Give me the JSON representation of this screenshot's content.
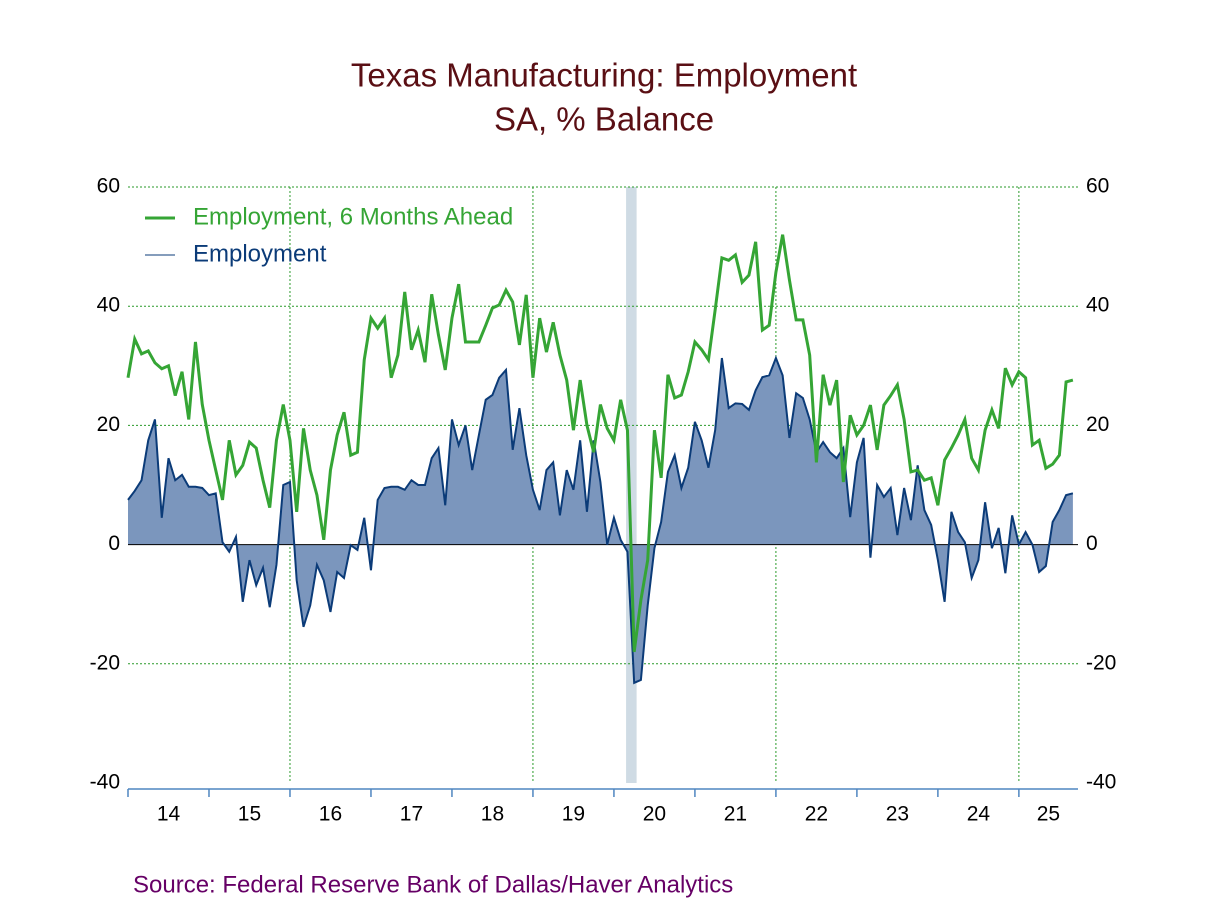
{
  "chart_data": {
    "type": "line-area",
    "title": "Texas Manufacturing: Employment",
    "subtitle": "SA, % Balance",
    "source": "Source:  Federal Reserve Bank of Dallas/Haver Analytics",
    "x": [
      2014,
      2014.083,
      2014.167,
      2014.25,
      2014.333,
      2014.417,
      2014.5,
      2014.583,
      2014.667,
      2014.75,
      2014.833,
      2014.917,
      2015,
      2015.083,
      2015.167,
      2015.25,
      2015.333,
      2015.417,
      2015.5,
      2015.583,
      2015.667,
      2015.75,
      2015.833,
      2015.917,
      2016,
      2016.083,
      2016.167,
      2016.25,
      2016.333,
      2016.417,
      2016.5,
      2016.583,
      2016.667,
      2016.75,
      2016.833,
      2016.917,
      2017,
      2017.083,
      2017.167,
      2017.25,
      2017.333,
      2017.417,
      2017.5,
      2017.583,
      2017.667,
      2017.75,
      2017.833,
      2017.917,
      2018,
      2018.083,
      2018.167,
      2018.25,
      2018.333,
      2018.417,
      2018.5,
      2018.583,
      2018.667,
      2018.75,
      2018.833,
      2018.917,
      2019,
      2019.083,
      2019.167,
      2019.25,
      2019.333,
      2019.417,
      2019.5,
      2019.583,
      2019.667,
      2019.75,
      2019.833,
      2019.917,
      2020,
      2020.083,
      2020.167,
      2020.25,
      2020.333,
      2020.417,
      2020.5,
      2020.583,
      2020.667,
      2020.75,
      2020.833,
      2020.917,
      2021,
      2021.083,
      2021.167,
      2021.25,
      2021.333,
      2021.417,
      2021.5,
      2021.583,
      2021.667,
      2021.75,
      2021.833,
      2021.917,
      2022,
      2022.083,
      2022.167,
      2022.25,
      2022.333,
      2022.417,
      2022.5,
      2022.583,
      2022.667,
      2022.75,
      2022.833,
      2022.917,
      2023,
      2023.083,
      2023.167,
      2023.25,
      2023.333,
      2023.417,
      2023.5,
      2023.583,
      2023.667,
      2023.75,
      2023.833,
      2023.917,
      2024,
      2024.083,
      2024.167,
      2024.25,
      2024.333,
      2024.417,
      2024.5,
      2024.583,
      2024.667,
      2024.75,
      2024.833,
      2024.917,
      2025,
      2025.083,
      2025.167,
      2025.25,
      2025.333,
      2025.417,
      2025.5,
      2025.583,
      2025.667
    ],
    "series": [
      {
        "name": "Employment, 6 Months Ahead",
        "color": "#35a535",
        "values": [
          28,
          34.5,
          32,
          32.5,
          30.5,
          29.5,
          30,
          25,
          29,
          21,
          34,
          23.5,
          17.5,
          12.5,
          7.5,
          17.5,
          11.7,
          13.3,
          17.2,
          16.2,
          10.8,
          6.2,
          17.5,
          23.5,
          17.5,
          5.5,
          19.5,
          12.5,
          8.3,
          0.8,
          12.5,
          18.4,
          22.2,
          15,
          15.5,
          31,
          38,
          36.3,
          38,
          28,
          31.8,
          42.4,
          32.7,
          36,
          30.6,
          42,
          35.2,
          29.3,
          38,
          43.7,
          34,
          34,
          34,
          36.8,
          39.7,
          40.2,
          42.7,
          40.7,
          33.5,
          41.9,
          28,
          38,
          32.3,
          37.3,
          31.8,
          27.6,
          19.2,
          27.6,
          20,
          15.5,
          23.5,
          19.5,
          17.5,
          24.3,
          19.2,
          -18,
          -9.3,
          -2.6,
          19.2,
          11.2,
          28.5,
          24.6,
          25.1,
          29,
          34,
          32.7,
          31,
          39.4,
          48.1,
          47.7,
          48.6,
          44,
          45.2,
          50.8,
          36,
          36.8,
          45.7,
          52,
          44.4,
          37.7,
          37.7,
          31.8,
          13.8,
          28.5,
          23.4,
          27.6,
          10.5,
          21.7,
          18.4,
          20,
          23.4,
          15.9,
          23.4,
          25,
          26.8,
          21,
          12.2,
          12.5,
          10.8,
          11.2,
          6.6,
          14.2,
          16.2,
          18.4,
          21,
          14.5,
          12.5,
          19.2,
          22.6,
          19.5,
          29.6,
          26.8,
          29,
          28,
          16.7,
          17.5,
          12.8,
          13.5,
          15,
          27.3,
          27.6
        ]
      },
      {
        "name": "Employment",
        "color": "#0b3b78",
        "fill": "#7b96bd",
        "values": [
          7.5,
          9,
          10.8,
          17.5,
          21,
          4.5,
          14.5,
          10.8,
          11.7,
          9.7,
          9.7,
          9.5,
          8.3,
          8.6,
          0.4,
          -1.2,
          1.3,
          -9.6,
          -2.6,
          -6.8,
          -3.9,
          -10.5,
          -3.4,
          10,
          10.5,
          -6,
          -13.8,
          -10.2,
          -3.4,
          -6,
          -11.3,
          -4.6,
          -5.6,
          -0.1,
          -0.9,
          4.5,
          -4.3,
          7.5,
          9.5,
          9.7,
          9.7,
          9.2,
          10.8,
          10,
          10,
          14.5,
          16.2,
          6.6,
          21,
          16.7,
          20,
          12.5,
          18.4,
          24.3,
          25.1,
          28,
          29.3,
          15.9,
          22.9,
          15,
          9.2,
          5.8,
          12.5,
          13.8,
          4.9,
          12.5,
          9.2,
          17.5,
          5.5,
          17.5,
          10.5,
          0,
          4.5,
          0.8,
          -1.2,
          -23.2,
          -22.7,
          -10.2,
          -0.6,
          3.8,
          12.2,
          15,
          9.5,
          12.9,
          20.6,
          17.5,
          12.9,
          19.2,
          31.3,
          22.9,
          23.7,
          23.6,
          22.6,
          25.9,
          28.1,
          28.4,
          31.3,
          28.4,
          17.9,
          25.4,
          24.6,
          21,
          15.5,
          17.2,
          15.5,
          14.5,
          16.2,
          4.6,
          13.8,
          17.9,
          -2.2,
          10,
          8,
          9.5,
          1.6,
          9.5,
          4.1,
          13.3,
          5.8,
          3.3,
          -2.6,
          -9.6,
          5.5,
          2.1,
          0.4,
          -5.6,
          -2.6,
          7.1,
          -0.6,
          2.8,
          -4.8,
          4.9,
          0,
          2.1,
          0,
          -4.6,
          -3.6,
          3.8,
          5.8,
          8.3,
          8.6
        ]
      }
    ],
    "xlim": [
      2014,
      2025.73
    ],
    "xticks": [
      {
        "value": 2014.5,
        "label": "14"
      },
      {
        "value": 2015.5,
        "label": "15"
      },
      {
        "value": 2016.5,
        "label": "16"
      },
      {
        "value": 2017.5,
        "label": "17"
      },
      {
        "value": 2018.5,
        "label": "18"
      },
      {
        "value": 2019.5,
        "label": "19"
      },
      {
        "value": 2020.5,
        "label": "20"
      },
      {
        "value": 2021.5,
        "label": "21"
      },
      {
        "value": 2022.5,
        "label": "22"
      },
      {
        "value": 2023.5,
        "label": "23"
      },
      {
        "value": 2024.5,
        "label": "24"
      },
      {
        "value": 2025.365,
        "label": "25"
      }
    ],
    "xtick_marks": [
      2014,
      2015,
      2016,
      2017,
      2018,
      2019,
      2020,
      2021,
      2022,
      2023,
      2024,
      2025
    ],
    "xgrid": [
      2016,
      2019,
      2022,
      2025
    ],
    "shaded_periods": [
      [
        2020.15,
        2020.28
      ]
    ],
    "ylim": [
      -40,
      60
    ],
    "yticks": [
      -40,
      -20,
      0,
      20,
      40,
      60
    ],
    "grid": true,
    "legend": "top-left"
  }
}
